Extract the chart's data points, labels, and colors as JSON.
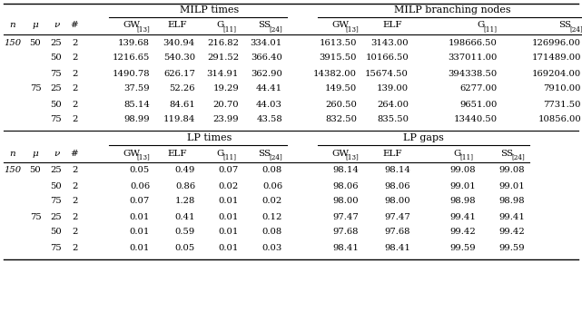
{
  "title_top_left": "MILP times",
  "title_top_right": "MILP branching nodes",
  "title_bot_left": "LP times",
  "title_bot_right": "LP gaps",
  "milp_times": [
    [
      "139.68",
      "340.94",
      "216.82",
      "334.01"
    ],
    [
      "1216.65",
      "540.30",
      "291.52",
      "366.40"
    ],
    [
      "1490.78",
      "626.17",
      "314.91",
      "362.90"
    ],
    [
      "37.59",
      "52.26",
      "19.29",
      "44.41"
    ],
    [
      "85.14",
      "84.61",
      "20.70",
      "44.03"
    ],
    [
      "98.99",
      "119.84",
      "23.99",
      "43.58"
    ]
  ],
  "milp_nodes": [
    [
      "1613.50",
      "3143.00",
      "198666.50",
      "126996.00"
    ],
    [
      "3915.50",
      "10166.50",
      "337011.00",
      "171489.00"
    ],
    [
      "14382.00",
      "15674.50",
      "394338.50",
      "169204.00"
    ],
    [
      "149.50",
      "139.00",
      "6277.00",
      "7910.00"
    ],
    [
      "260.50",
      "264.00",
      "9651.00",
      "7731.50"
    ],
    [
      "832.50",
      "835.50",
      "13440.50",
      "10856.00"
    ]
  ],
  "lp_times": [
    [
      "0.05",
      "0.49",
      "0.07",
      "0.08"
    ],
    [
      "0.06",
      "0.86",
      "0.02",
      "0.06"
    ],
    [
      "0.07",
      "1.28",
      "0.01",
      "0.02"
    ],
    [
      "0.01",
      "0.41",
      "0.01",
      "0.12"
    ],
    [
      "0.01",
      "0.59",
      "0.01",
      "0.08"
    ],
    [
      "0.01",
      "0.05",
      "0.01",
      "0.03"
    ]
  ],
  "lp_gaps": [
    [
      "98.14",
      "98.14",
      "99.08",
      "99.08"
    ],
    [
      "98.06",
      "98.06",
      "99.01",
      "99.01"
    ],
    [
      "98.00",
      "98.00",
      "98.98",
      "98.98"
    ],
    [
      "97.47",
      "97.47",
      "99.41",
      "99.41"
    ],
    [
      "97.68",
      "97.68",
      "99.42",
      "99.42"
    ],
    [
      "98.41",
      "98.41",
      "99.59",
      "99.59"
    ]
  ],
  "row_n": [
    "150",
    "",
    "",
    "",
    "",
    ""
  ],
  "row_mu": [
    "50",
    "",
    "",
    "75",
    "",
    ""
  ],
  "row_nu": [
    "25",
    "50",
    "75",
    "25",
    "50",
    "75"
  ],
  "row_hsh": [
    "2",
    "2",
    "2",
    "2",
    "2",
    "2"
  ],
  "fs": 7.2,
  "fs_hdr": 7.5,
  "fs_title": 8.0,
  "fs_sub": 5.2
}
